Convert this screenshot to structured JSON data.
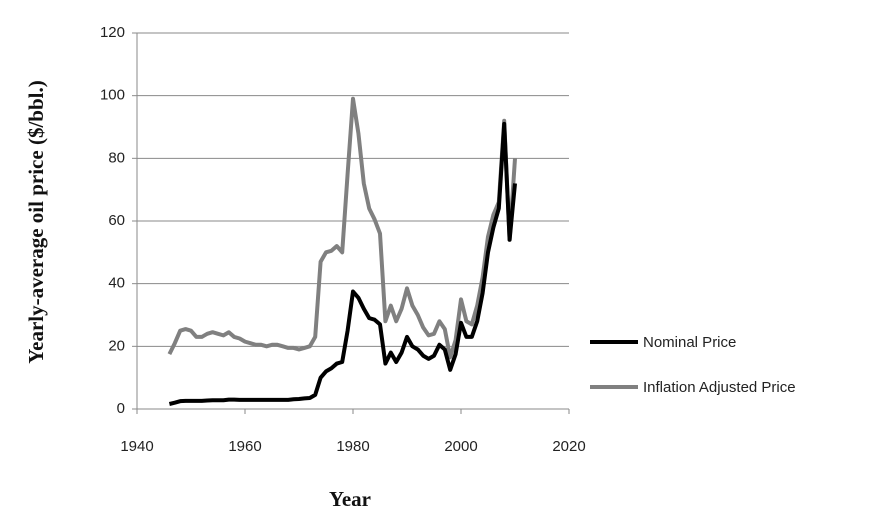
{
  "chart_data": {
    "type": "line",
    "xlabel": "Year",
    "ylabel": "Yearly-average oil price ($/bbl.)",
    "x": [
      1946,
      1947,
      1948,
      1949,
      1950,
      1951,
      1952,
      1953,
      1954,
      1955,
      1956,
      1957,
      1958,
      1959,
      1960,
      1961,
      1962,
      1963,
      1964,
      1965,
      1966,
      1967,
      1968,
      1969,
      1970,
      1971,
      1972,
      1973,
      1974,
      1975,
      1976,
      1977,
      1978,
      1979,
      1980,
      1981,
      1982,
      1983,
      1984,
      1985,
      1986,
      1987,
      1988,
      1989,
      1990,
      1991,
      1992,
      1993,
      1994,
      1995,
      1996,
      1997,
      1998,
      1999,
      2000,
      2001,
      2002,
      2003,
      2004,
      2005,
      2006,
      2007,
      2008,
      2009,
      2010
    ],
    "series": [
      {
        "name": "Nominal Price",
        "color": "#000000",
        "values": [
          1.6,
          2.0,
          2.5,
          2.6,
          2.6,
          2.6,
          2.6,
          2.7,
          2.8,
          2.8,
          2.8,
          3.0,
          3.0,
          2.9,
          2.9,
          2.9,
          2.9,
          2.9,
          2.9,
          2.9,
          2.9,
          2.9,
          2.9,
          3.1,
          3.2,
          3.4,
          3.5,
          4.5,
          10,
          12,
          13,
          14.5,
          15,
          25,
          37.5,
          35.5,
          32,
          29,
          28.5,
          27,
          14.5,
          18,
          15,
          18,
          23,
          20,
          19,
          17,
          16,
          17,
          20.5,
          19,
          12.5,
          17.5,
          27.5,
          23,
          23,
          28,
          37,
          50,
          58,
          64,
          91,
          54,
          72
        ]
      },
      {
        "name": "Inflation Adjusted Price",
        "color": "#808080",
        "values": [
          17.5,
          21,
          25,
          25.5,
          25,
          23,
          23,
          24,
          24.5,
          24,
          23.5,
          24.5,
          23,
          22.5,
          21.5,
          21,
          20.5,
          20.5,
          20,
          20.5,
          20.5,
          20,
          19.5,
          19.5,
          19,
          19.5,
          20,
          23,
          47,
          50,
          50.5,
          52,
          50,
          75,
          99,
          88,
          72,
          64,
          60.5,
          56,
          28,
          33,
          28,
          32,
          38.5,
          33,
          30,
          26,
          23.5,
          24,
          28,
          25.5,
          16.5,
          22,
          35,
          28,
          27,
          33,
          42,
          55,
          62,
          66,
          92,
          54,
          80
        ]
      }
    ],
    "xlim": [
      1940,
      2020
    ],
    "xticks": [
      1940,
      1960,
      1980,
      2000,
      2020
    ],
    "ylim": [
      0,
      120
    ],
    "yticks": [
      0,
      20,
      40,
      60,
      80,
      100,
      120
    ],
    "grid": true,
    "legend": "right"
  }
}
